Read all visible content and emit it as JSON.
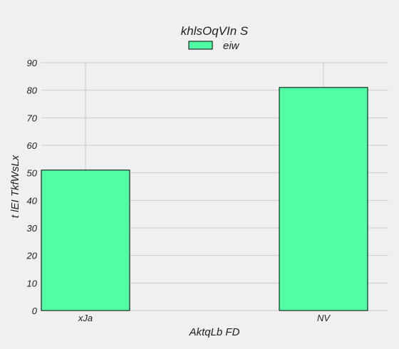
{
  "chart_data": {
    "type": "bar",
    "title": "khlsOqVIn S",
    "xlabel": "AktqLb FD",
    "ylabel": "t lEI TkfWsLx",
    "categories": [
      "xJa",
      "NV"
    ],
    "series": [
      {
        "name": "eiw",
        "values": [
          51,
          81
        ],
        "color": "#50ffa4"
      }
    ],
    "ylim": [
      0,
      90
    ],
    "yticks": [
      0,
      10,
      20,
      30,
      40,
      50,
      60,
      70,
      80,
      90
    ],
    "grid": true,
    "legend_position": "top-center",
    "bar_edge_color": "#000000",
    "background_color": "#f0f0f0",
    "grid_color": "#cbcbcb"
  }
}
